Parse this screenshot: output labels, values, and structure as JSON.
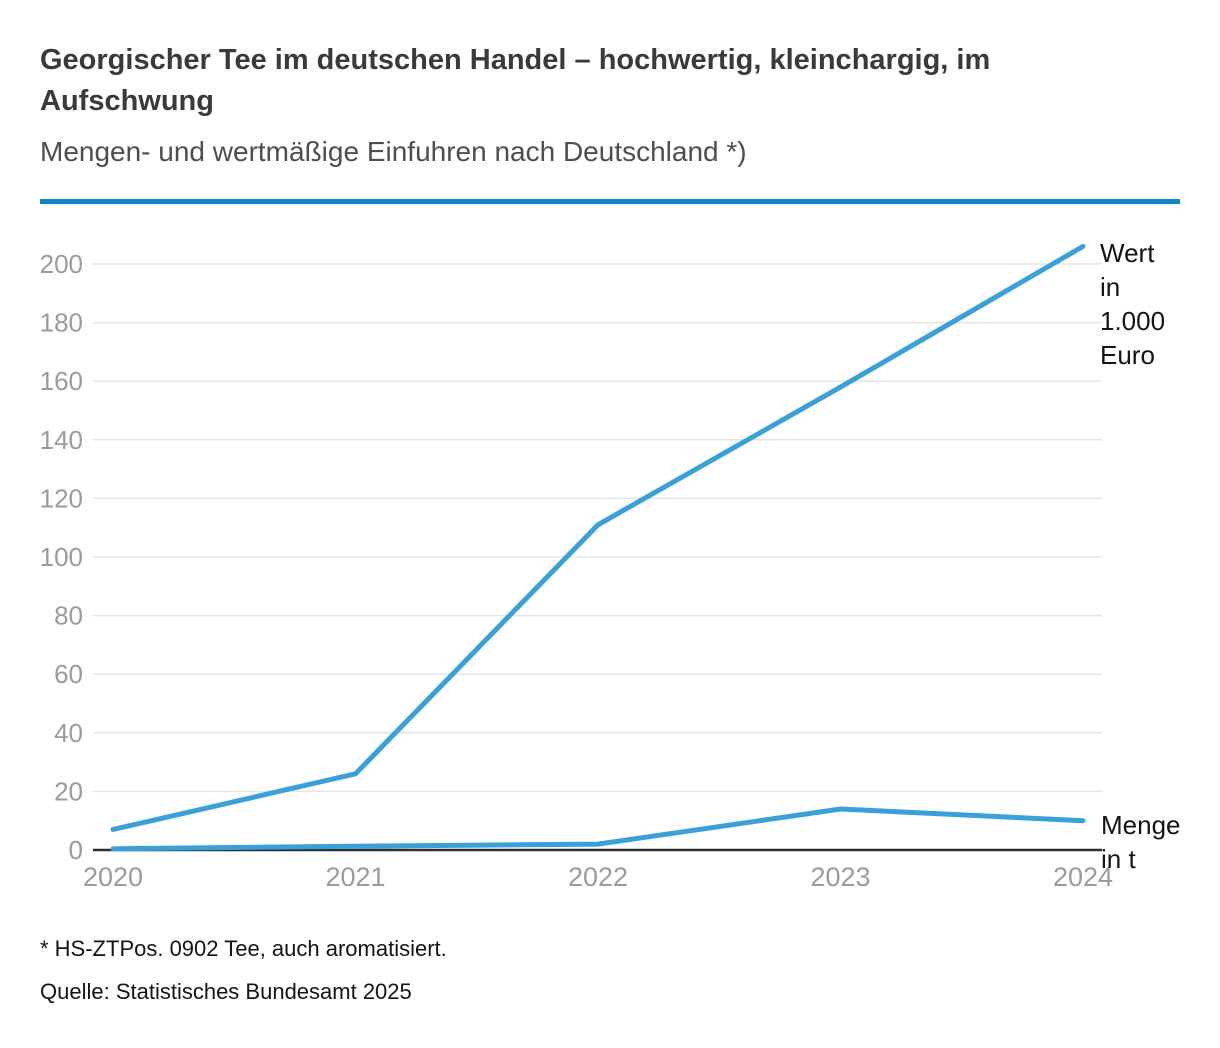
{
  "header": {
    "title": "Georgischer Tee im deutschen Handel – hochwertig, kleinchargig, im\nAufschwung",
    "subtitle": "Mengen- und wertmäßige Einfuhren nach Deutschland *)"
  },
  "chart_data": {
    "type": "line",
    "x": [
      "2020",
      "2021",
      "2022",
      "2023",
      "2024"
    ],
    "series": [
      {
        "name": "Wert in 1.000 Euro",
        "values": [
          7,
          26,
          111,
          158,
          206
        ]
      },
      {
        "name": "Menge in t",
        "values": [
          0.4,
          1.3,
          2,
          14,
          10
        ]
      }
    ],
    "title": "Georgischer Tee im deutschen Handel – hochwertig, kleinchargig, im Aufschwung",
    "xlabel": "",
    "ylabel": "",
    "ylim": [
      0,
      200
    ],
    "ytick_step": 20,
    "grid": true,
    "legend_position": "right-of-line-ends",
    "line_color": "#3aa0da",
    "axis_color": "#2e2e2e",
    "grid_color": "#e5e5e5",
    "tick_label_color": "#9b9b9b",
    "annotations": [
      {
        "series": "Wert",
        "text": "Wert\nin\n1.000\nEuro"
      },
      {
        "series": "Menge",
        "text": "Menge\nin t"
      }
    ]
  },
  "footer": {
    "footnote": "* HS-ZTPos. 0902 Tee, auch aromatisiert.",
    "source": "Quelle: Statistisches Bundesamt 2025"
  },
  "colors": {
    "divider_blue": "#0e86c8"
  }
}
